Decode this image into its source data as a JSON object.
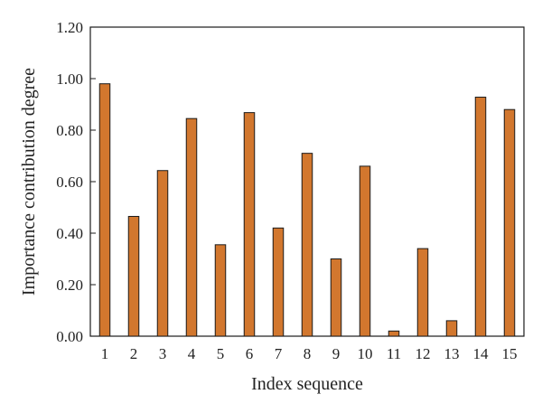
{
  "chart_data": {
    "type": "bar",
    "title": "",
    "xlabel": "Index sequence",
    "ylabel": "Importance contribution degree",
    "categories": [
      "1",
      "2",
      "3",
      "4",
      "5",
      "6",
      "7",
      "8",
      "9",
      "10",
      "11",
      "12",
      "13",
      "14",
      "15"
    ],
    "values": [
      0.98,
      0.465,
      0.643,
      0.845,
      0.355,
      0.868,
      0.42,
      0.71,
      0.3,
      0.66,
      0.02,
      0.34,
      0.06,
      0.928,
      0.88
    ],
    "ylim": [
      0,
      1.2
    ],
    "yticks": [
      "0.00",
      "0.20",
      "0.40",
      "0.60",
      "0.80",
      "1.00",
      "1.20"
    ],
    "grid": false,
    "legend": "none",
    "bar_color": "#d2772e",
    "bar_stroke": "#1a1a1a"
  }
}
